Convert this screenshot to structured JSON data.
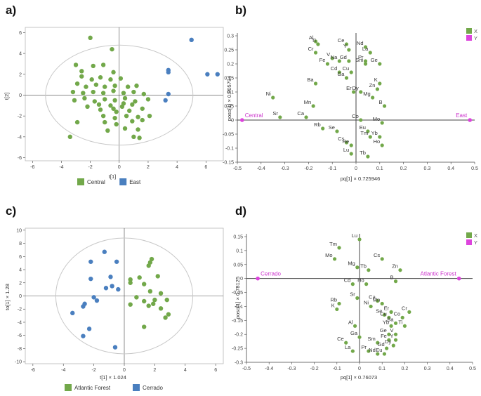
{
  "colors": {
    "green": "#72a84a",
    "blue": "#4a7fbf",
    "magenta": "#dd44dd",
    "ellipse": "#c8c8c8",
    "axis": "#444444",
    "frame": "#b8b8b8"
  },
  "chart_data": [
    {
      "id": "a",
      "panel_label": "a)",
      "type": "scatter",
      "xlabel": "t[1]",
      "ylabel": "t[2]",
      "xlim": [
        -6.5,
        7.2
      ],
      "ylim": [
        -6.3,
        6.5
      ],
      "xticks": [
        -6,
        -4,
        -2,
        0,
        2,
        4,
        6
      ],
      "yticks": [
        -6,
        -4,
        -2,
        0,
        2,
        4,
        6
      ],
      "tick_labels_x": [
        "-6",
        "-4",
        "-2",
        "0",
        "2",
        "4",
        "6"
      ],
      "tick_labels_y": [
        "-6",
        "-4",
        "-2",
        "0",
        "2",
        "4",
        "6"
      ],
      "ellipse": {
        "rx": 5.1,
        "ry": 4.8
      },
      "legend": [
        "Central",
        "East"
      ],
      "series": [
        {
          "name": "Central",
          "color": "#72a84a",
          "points": [
            [
              -2.0,
              5.5
            ],
            [
              -0.5,
              4.4
            ],
            [
              -3.0,
              2.9
            ],
            [
              -2.6,
              2.3
            ],
            [
              -1.8,
              2.8
            ],
            [
              -1.1,
              2.9
            ],
            [
              -0.4,
              2.2
            ],
            [
              -2.6,
              1.8
            ],
            [
              -1.9,
              1.5
            ],
            [
              -1.3,
              1.7
            ],
            [
              -0.6,
              1.5
            ],
            [
              0.1,
              1.6
            ],
            [
              -2.9,
              1.1
            ],
            [
              -2.3,
              0.8
            ],
            [
              -1.6,
              1.0
            ],
            [
              -1.0,
              0.8
            ],
            [
              -0.3,
              0.9
            ],
            [
              0.6,
              0.8
            ],
            [
              1.2,
              0.9
            ],
            [
              -3.2,
              0.3
            ],
            [
              -2.5,
              0.2
            ],
            [
              -1.8,
              0.3
            ],
            [
              -1.1,
              0.2
            ],
            [
              -0.4,
              0.4
            ],
            [
              0.3,
              0.2
            ],
            [
              1.0,
              0.3
            ],
            [
              1.7,
              0.1
            ],
            [
              -3.1,
              -0.5
            ],
            [
              -2.4,
              -0.3
            ],
            [
              -1.7,
              -0.6
            ],
            [
              -1.0,
              -0.4
            ],
            [
              -0.3,
              -0.5
            ],
            [
              0.4,
              -0.3
            ],
            [
              1.1,
              -0.6
            ],
            [
              2.0,
              -0.4
            ],
            [
              -2.2,
              -1.1
            ],
            [
              -1.4,
              -0.9
            ],
            [
              -0.6,
              -1.0
            ],
            [
              0.2,
              -1.1
            ],
            [
              0.9,
              -0.9
            ],
            [
              -0.2,
              -1.6
            ],
            [
              0.7,
              -1.5
            ],
            [
              1.6,
              -1.3
            ],
            [
              -1.1,
              -2.0
            ],
            [
              -0.3,
              -2.2
            ],
            [
              0.5,
              -2.0
            ],
            [
              1.3,
              -2.1
            ],
            [
              2.1,
              -2.0
            ],
            [
              -1.0,
              -2.6
            ],
            [
              -0.2,
              -2.8
            ],
            [
              0.9,
              -2.5
            ],
            [
              1.6,
              -2.4
            ],
            [
              -2.9,
              -2.6
            ],
            [
              -0.8,
              -3.4
            ],
            [
              0.4,
              -3.2
            ],
            [
              1.3,
              -3.3
            ],
            [
              1.0,
              -4.0
            ],
            [
              -3.4,
              -4.0
            ],
            [
              1.4,
              -4.1
            ],
            [
              -0.4,
              -1.3
            ],
            [
              0.3,
              -0.8
            ],
            [
              -1.3,
              -1.4
            ]
          ]
        },
        {
          "name": "East",
          "color": "#4a7fbf",
          "points": [
            [
              5.0,
              5.3
            ],
            [
              3.4,
              2.4
            ],
            [
              3.4,
              2.2
            ],
            [
              6.1,
              2.0
            ],
            [
              6.8,
              2.0
            ],
            [
              3.4,
              0.1
            ],
            [
              3.2,
              -0.5
            ]
          ]
        }
      ]
    },
    {
      "id": "b",
      "panel_label": "b)",
      "type": "scatter",
      "xlabel": "pq[1] × 0.725946",
      "ylabel": "poso[1] × 0.805794",
      "xlim": [
        -0.5,
        0.5
      ],
      "ylim": [
        -0.15,
        0.31
      ],
      "xticks": [
        -0.5,
        -0.4,
        -0.3,
        -0.2,
        -0.1,
        0,
        0.1,
        0.2,
        0.3,
        0.4,
        0.5
      ],
      "yticks": [
        -0.15,
        -0.1,
        -0.05,
        0,
        0.05,
        0.1,
        0.15,
        0.2,
        0.25,
        0.3
      ],
      "tick_labels_x": [
        "-0.5",
        "-0.4",
        "-0.3",
        "-0.2",
        "-0.1",
        "0",
        "0.1",
        "0.2",
        "0.3",
        "0.4",
        "0.5"
      ],
      "tick_labels_y": [
        "-0.15",
        "-0.1",
        "-0.05",
        "0",
        "0.05",
        "0.1",
        "0.15",
        "0.2",
        "0.25",
        "0.3"
      ],
      "legend": [
        "X",
        "Y"
      ],
      "variables": [
        {
          "label": "Al",
          "x": -0.17,
          "y": 0.28
        },
        {
          "label": "Ti",
          "x": -0.16,
          "y": 0.27
        },
        {
          "label": "Ce",
          "x": -0.04,
          "y": 0.27
        },
        {
          "label": "Nd",
          "x": 0.04,
          "y": 0.26
        },
        {
          "label": "Y",
          "x": -0.03,
          "y": 0.25
        },
        {
          "label": "Cr",
          "x": -0.17,
          "y": 0.24
        },
        {
          "label": "La",
          "x": 0.06,
          "y": 0.24
        },
        {
          "label": "V",
          "x": -0.1,
          "y": 0.22
        },
        {
          "label": "Na",
          "x": -0.07,
          "y": 0.21
        },
        {
          "label": "Gd",
          "x": -0.03,
          "y": 0.21
        },
        {
          "label": "Pr",
          "x": 0.04,
          "y": 0.21
        },
        {
          "label": "Fe",
          "x": -0.12,
          "y": 0.2
        },
        {
          "label": "Sm",
          "x": 0.04,
          "y": 0.2
        },
        {
          "label": "Ge",
          "x": 0.1,
          "y": 0.2
        },
        {
          "label": "Cd",
          "x": -0.07,
          "y": 0.17
        },
        {
          "label": "Cu",
          "x": -0.02,
          "y": 0.17
        },
        {
          "label": "Ga",
          "x": -0.04,
          "y": 0.15
        },
        {
          "label": "Ba",
          "x": -0.17,
          "y": 0.13
        },
        {
          "label": "K",
          "x": 0.1,
          "y": 0.13
        },
        {
          "label": "Zn",
          "x": 0.09,
          "y": 0.11
        },
        {
          "label": "Er",
          "x": -0.01,
          "y": 0.1
        },
        {
          "label": "Dy",
          "x": 0.02,
          "y": 0.1
        },
        {
          "label": "Mg",
          "x": 0.07,
          "y": 0.08
        },
        {
          "label": "Ni",
          "x": -0.35,
          "y": 0.08
        },
        {
          "label": "Mn",
          "x": -0.18,
          "y": 0.05
        },
        {
          "label": "B",
          "x": 0.12,
          "y": 0.05
        },
        {
          "label": "Sr",
          "x": -0.32,
          "y": 0.01
        },
        {
          "label": "Ca",
          "x": -0.21,
          "y": 0.01
        },
        {
          "label": "Co",
          "x": 0.02,
          "y": 0.0
        },
        {
          "label": "Mo",
          "x": 0.11,
          "y": -0.01
        },
        {
          "label": "Rb",
          "x": -0.14,
          "y": -0.03
        },
        {
          "label": "Se",
          "x": -0.08,
          "y": -0.04
        },
        {
          "label": "Eu",
          "x": 0.05,
          "y": -0.04
        },
        {
          "label": "Tm",
          "x": 0.06,
          "y": -0.06
        },
        {
          "label": "Yb",
          "x": 0.1,
          "y": -0.06
        },
        {
          "label": "Cs",
          "x": -0.04,
          "y": -0.08
        },
        {
          "label": "Re",
          "x": -0.02,
          "y": -0.09
        },
        {
          "label": "Ho",
          "x": 0.11,
          "y": -0.09
        },
        {
          "label": "Lu",
          "x": -0.02,
          "y": -0.12
        },
        {
          "label": "Tb",
          "x": 0.05,
          "y": -0.13
        }
      ],
      "anchors": [
        {
          "label": "Central",
          "x": -0.48,
          "y": 0.0
        },
        {
          "label": "East",
          "x": 0.48,
          "y": 0.0
        }
      ]
    },
    {
      "id": "c",
      "panel_label": "c)",
      "type": "scatter",
      "xlabel": "t[1] × 1.024",
      "ylabel": "to[1] × 1.28",
      "xlim": [
        -6.5,
        6.5
      ],
      "ylim": [
        -10.3,
        10.3
      ],
      "xticks": [
        -6,
        -4,
        -2,
        0,
        2,
        4,
        6
      ],
      "yticks": [
        -10,
        -8,
        -6,
        -4,
        -2,
        0,
        2,
        4,
        6,
        8,
        10
      ],
      "tick_labels_x": [
        "-6",
        "-4",
        "-2",
        "0",
        "2",
        "4",
        "6"
      ],
      "tick_labels_y": [
        "-10",
        "-8",
        "-6",
        "-4",
        "-2",
        "0",
        "2",
        "4",
        "6",
        "8",
        "10"
      ],
      "ellipse": {
        "rx": 4.5,
        "ry": 8.8
      },
      "legend": [
        "Atlantic Forest",
        "Cerrado"
      ],
      "series": [
        {
          "name": "Atlantic Forest",
          "color": "#72a84a",
          "points": [
            [
              1.8,
              5.6
            ],
            [
              1.7,
              5.1
            ],
            [
              1.6,
              4.6
            ],
            [
              0.4,
              2.5
            ],
            [
              0.4,
              2.0
            ],
            [
              1.0,
              2.8
            ],
            [
              2.2,
              3.0
            ],
            [
              1.3,
              1.8
            ],
            [
              1.7,
              0.7
            ],
            [
              2.4,
              0.4
            ],
            [
              0.8,
              -0.2
            ],
            [
              2.0,
              -0.6
            ],
            [
              2.8,
              -0.6
            ],
            [
              2.9,
              -2.8
            ],
            [
              2.7,
              -3.3
            ],
            [
              1.3,
              -0.8
            ],
            [
              1.9,
              -1.2
            ],
            [
              1.6,
              -1.5
            ],
            [
              2.4,
              -1.9
            ],
            [
              1.3,
              -4.7
            ],
            [
              0.4,
              -1.3
            ]
          ]
        },
        {
          "name": "Cerrado",
          "color": "#4a7fbf",
          "points": [
            [
              -1.3,
              6.7
            ],
            [
              -0.5,
              5.2
            ],
            [
              -2.2,
              5.2
            ],
            [
              -2.2,
              2.6
            ],
            [
              -0.9,
              2.9
            ],
            [
              -0.8,
              1.5
            ],
            [
              -0.4,
              1.0
            ],
            [
              -1.2,
              1.2
            ],
            [
              -2.0,
              -0.2
            ],
            [
              -2.6,
              -1.2
            ],
            [
              -2.7,
              -1.6
            ],
            [
              -1.8,
              -0.7
            ],
            [
              -3.4,
              -2.6
            ],
            [
              -2.3,
              -5.0
            ],
            [
              -2.7,
              -6.1
            ],
            [
              -0.6,
              -7.8
            ]
          ]
        }
      ]
    },
    {
      "id": "d",
      "panel_label": "d)",
      "type": "scatter",
      "xlabel": "pq[1] × 0.76073",
      "ylabel": "poso[1] × 0.78125",
      "xlim": [
        -0.5,
        0.5
      ],
      "ylim": [
        -0.3,
        0.16
      ],
      "xticks": [
        -0.5,
        -0.4,
        -0.3,
        -0.2,
        -0.1,
        0,
        0.1,
        0.2,
        0.3,
        0.4,
        0.5
      ],
      "yticks": [
        -0.3,
        -0.25,
        -0.2,
        -0.15,
        -0.1,
        -0.05,
        0,
        0.05,
        0.1,
        0.15
      ],
      "tick_labels_x": [
        "-0.5",
        "-0.4",
        "-0.3",
        "-0.2",
        "-0.1",
        "0",
        "0.1",
        "0.2",
        "0.3",
        "0.4",
        "0.5"
      ],
      "tick_labels_y": [
        "-0.3",
        "-0.25",
        "-0.2",
        "-0.15",
        "-0.1",
        "-0.05",
        "0",
        "0.05",
        "0.1",
        "0.15"
      ],
      "legend": [
        "X",
        "Y"
      ],
      "variables": [
        {
          "label": "Lu",
          "x": 0.0,
          "y": 0.14
        },
        {
          "label": "Tm",
          "x": -0.09,
          "y": 0.11
        },
        {
          "label": "Cs",
          "x": 0.1,
          "y": 0.07
        },
        {
          "label": "Mo",
          "x": -0.11,
          "y": 0.07
        },
        {
          "label": "Mg",
          "x": -0.01,
          "y": 0.04
        },
        {
          "label": "Tb",
          "x": 0.04,
          "y": 0.03
        },
        {
          "label": "Zn",
          "x": 0.18,
          "y": 0.03
        },
        {
          "label": "B",
          "x": 0.16,
          "y": -0.01
        },
        {
          "label": "Cd",
          "x": -0.03,
          "y": -0.02
        },
        {
          "label": "Ho",
          "x": 0.03,
          "y": -0.02
        },
        {
          "label": "Sr",
          "x": -0.01,
          "y": -0.07
        },
        {
          "label": "Ca",
          "x": 0.08,
          "y": -0.08
        },
        {
          "label": "Mn",
          "x": 0.1,
          "y": -0.09
        },
        {
          "label": "Rb",
          "x": -0.09,
          "y": -0.09
        },
        {
          "label": "Ni",
          "x": 0.05,
          "y": -0.1
        },
        {
          "label": "K",
          "x": -0.1,
          "y": -0.11
        },
        {
          "label": "Er",
          "x": 0.14,
          "y": -0.12
        },
        {
          "label": "Cr",
          "x": 0.22,
          "y": -0.12
        },
        {
          "label": "Se",
          "x": 0.11,
          "y": -0.13
        },
        {
          "label": "Cu",
          "x": 0.13,
          "y": -0.14
        },
        {
          "label": "Co",
          "x": 0.19,
          "y": -0.14
        },
        {
          "label": "Ba",
          "x": 0.16,
          "y": -0.16
        },
        {
          "label": "Yb",
          "x": 0.14,
          "y": -0.17
        },
        {
          "label": "Ti",
          "x": 0.2,
          "y": -0.17
        },
        {
          "label": "Al",
          "x": -0.02,
          "y": -0.17
        },
        {
          "label": "Ge",
          "x": 0.13,
          "y": -0.2
        },
        {
          "label": "V",
          "x": 0.16,
          "y": -0.2
        },
        {
          "label": "Ga",
          "x": 0.0,
          "y": -0.21
        },
        {
          "label": "Fe",
          "x": 0.13,
          "y": -0.22
        },
        {
          "label": "Y",
          "x": 0.16,
          "y": -0.22
        },
        {
          "label": "Sm",
          "x": 0.08,
          "y": -0.23
        },
        {
          "label": "Dy",
          "x": 0.15,
          "y": -0.24
        },
        {
          "label": "Ce",
          "x": -0.06,
          "y": -0.23
        },
        {
          "label": "Gd",
          "x": 0.12,
          "y": -0.25
        },
        {
          "label": "Pr",
          "x": 0.04,
          "y": -0.26
        },
        {
          "label": "Nd",
          "x": 0.08,
          "y": -0.27
        },
        {
          "label": "La",
          "x": -0.03,
          "y": -0.26
        },
        {
          "label": "Eu",
          "x": 0.11,
          "y": -0.27
        }
      ],
      "anchors": [
        {
          "label": "Cerrado",
          "x": -0.45,
          "y": 0.0
        },
        {
          "label": "Atlantic Forest",
          "x": 0.44,
          "y": 0.0
        }
      ]
    }
  ]
}
